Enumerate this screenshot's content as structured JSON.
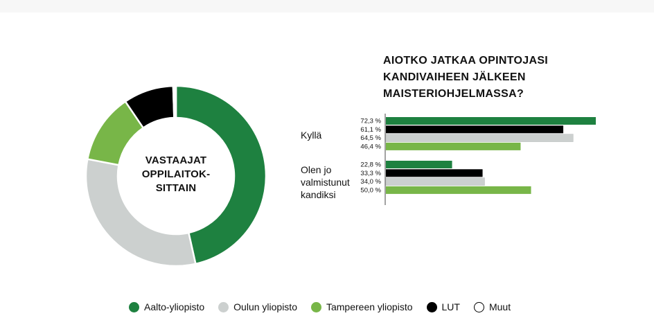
{
  "chart_data": [
    {
      "type": "pie",
      "title": "VASTAAJAT OPPILAITOKSITTAIN",
      "title_lines": [
        "VASTAAJAT",
        "OPPILAITOK-",
        "SITTAIN"
      ],
      "categories": [
        "Aalto-yliopisto",
        "Oulun yliopisto",
        "Tampereen yliopisto",
        "LUT",
        "Muut"
      ],
      "values": [
        46.5,
        31.5,
        12.5,
        9.0,
        0.5
      ],
      "colors": [
        "#1e8140",
        "#ccd0cf",
        "#78b648",
        "#000000",
        "#ffffff"
      ],
      "donut": true
    },
    {
      "type": "bar",
      "orientation": "horizontal",
      "title": "AIOTKO JATKAA OPINTOJASI KANDIVAIHEEN JÄLKEEN MAISTERIOHJELMASSA?",
      "title_lines": [
        "AIOTKO JATKAA OPINTOJASI",
        "KANDIVAIHEEN JÄLKEEN",
        "MAISTERIOHJELMASSA?"
      ],
      "categories": [
        "Kyllä",
        "Olen jo valmistunut kandiksi"
      ],
      "category_lines": [
        [
          "Kyllä"
        ],
        [
          "Olen jo",
          "valmistunut",
          "kandiksi"
        ]
      ],
      "series": [
        {
          "name": "Aalto-yliopisto",
          "color": "#1e8140",
          "values": [
            72.3,
            22.8
          ],
          "labels": [
            "72,3 %",
            "22,8 %"
          ]
        },
        {
          "name": "LUT",
          "color": "#000000",
          "values": [
            61.1,
            33.3
          ],
          "labels": [
            "61,1 %",
            "33,3 %"
          ]
        },
        {
          "name": "Oulun yliopisto",
          "color": "#ccd0cf",
          "values": [
            64.5,
            34.0
          ],
          "labels": [
            "64,5 %",
            "34,0 %"
          ]
        },
        {
          "name": "Tampereen yliopisto",
          "color": "#78b648",
          "values": [
            46.4,
            50.0
          ],
          "labels": [
            "46,4 %",
            "50,0 %"
          ]
        }
      ],
      "xlim": [
        0,
        75
      ]
    }
  ],
  "legend": {
    "items": [
      {
        "label": "Aalto-yliopisto",
        "color": "#1e8140"
      },
      {
        "label": "Oulun yliopisto",
        "color": "#ccd0cf"
      },
      {
        "label": "Tampereen yliopisto",
        "color": "#78b648"
      },
      {
        "label": "LUT",
        "color": "#000000"
      },
      {
        "label": "Muut",
        "color": "#ffffff"
      }
    ]
  }
}
